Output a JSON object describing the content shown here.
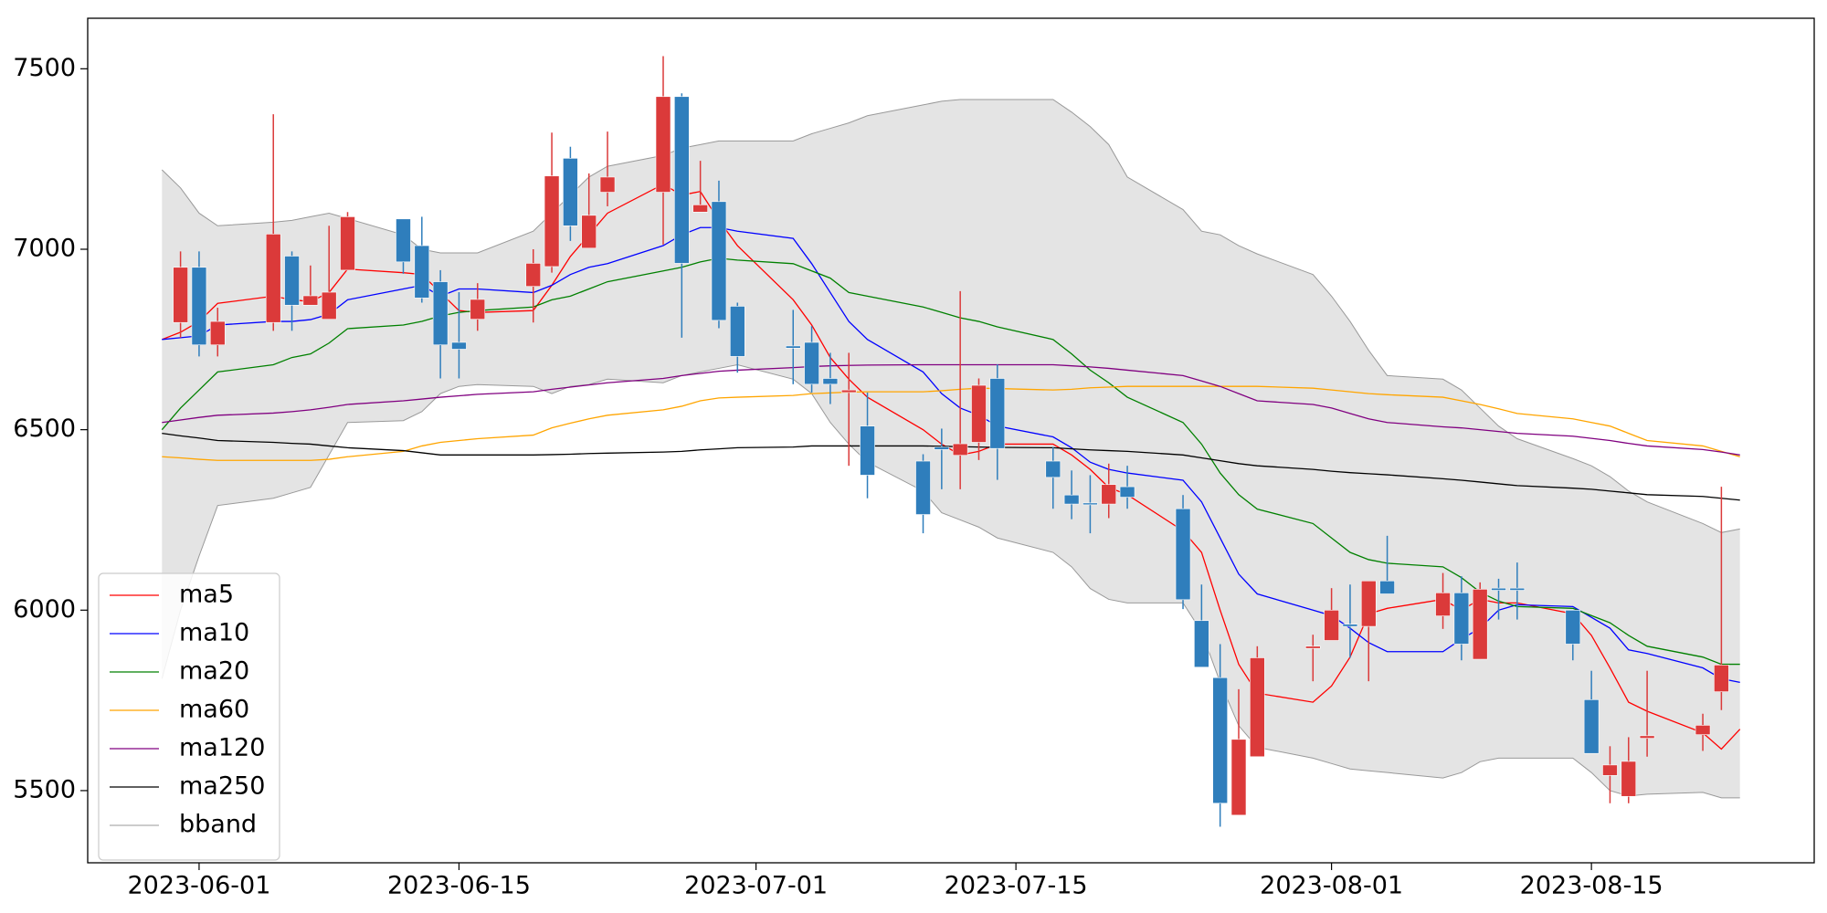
{
  "chart_data": {
    "type": "candlestick",
    "legend": "lower left",
    "ylim": [
      5300,
      7640
    ],
    "yticks": [
      5500,
      6000,
      6500,
      7000,
      7500
    ],
    "xlim": [
      "2023-05-26",
      "2023-08-27"
    ],
    "xticks": [
      "2023-06-01",
      "2023-06-15",
      "2023-07-01",
      "2023-07-15",
      "2023-08-01",
      "2023-08-15"
    ],
    "x": [
      "2023-05-30",
      "2023-05-31",
      "2023-06-01",
      "2023-06-02",
      "2023-06-05",
      "2023-06-06",
      "2023-06-07",
      "2023-06-08",
      "2023-06-09",
      "2023-06-12",
      "2023-06-13",
      "2023-06-14",
      "2023-06-15",
      "2023-06-16",
      "2023-06-19",
      "2023-06-20",
      "2023-06-21",
      "2023-06-22",
      "2023-06-23",
      "2023-06-26",
      "2023-06-27",
      "2023-06-28",
      "2023-06-29",
      "2023-06-30",
      "2023-07-03",
      "2023-07-04",
      "2023-07-05",
      "2023-07-06",
      "2023-07-07",
      "2023-07-10",
      "2023-07-11",
      "2023-07-12",
      "2023-07-13",
      "2023-07-14",
      "2023-07-17",
      "2023-07-18",
      "2023-07-19",
      "2023-07-20",
      "2023-07-21",
      "2023-07-24",
      "2023-07-25",
      "2023-07-26",
      "2023-07-27",
      "2023-07-28",
      "2023-07-31",
      "2023-08-01",
      "2023-08-02",
      "2023-08-03",
      "2023-08-04",
      "2023-08-07",
      "2023-08-08",
      "2023-08-09",
      "2023-08-10",
      "2023-08-11",
      "2023-08-14",
      "2023-08-15",
      "2023-08-16",
      "2023-08-17",
      "2023-08-18",
      "2023-08-21",
      "2023-08-22",
      "2023-08-23"
    ],
    "candles": {
      "up_color": "#db3a3a",
      "down_color": "#2f7ebc",
      "open": [
        null,
        6797,
        6950,
        6735,
        6797,
        6981,
        6845,
        6806,
        6942,
        7084,
        7010,
        6910,
        6742,
        6806,
        6897,
        6952,
        7252,
        7003,
        7158,
        7158,
        7423,
        7103,
        7132,
        6842,
        6732,
        6742,
        6642,
        6603,
        6510,
        6413,
        6452,
        6429,
        6465,
        6642,
        6413,
        6319,
        6297,
        6294,
        6342,
        6281,
        5971,
        5813,
        5432,
        5594,
        5894,
        5916,
        5961,
        5955,
        6081,
        5984,
        6048,
        5864,
        6061,
        6061,
        6000,
        5752,
        5542,
        5484,
        5645,
        5655,
        5774,
        null
      ],
      "high": [
        null,
        6994,
        6994,
        6838,
        7374,
        6994,
        6955,
        7065,
        7103,
        7084,
        7090,
        6942,
        6881,
        6906,
        7000,
        7323,
        7284,
        7210,
        7326,
        7535,
        7432,
        7245,
        7190,
        6852,
        6832,
        6787,
        6713,
        6713,
        6603,
        6432,
        6503,
        6884,
        6642,
        6681,
        6452,
        6387,
        6374,
        6406,
        6400,
        6319,
        6071,
        5906,
        5781,
        5900,
        5932,
        6061,
        6071,
        6081,
        6206,
        6103,
        6094,
        6077,
        6087,
        6132,
        6000,
        5832,
        5623,
        5648,
        5832,
        5713,
        6342,
        null
      ],
      "low": [
        null,
        6755,
        6703,
        6703,
        6774,
        6774,
        6845,
        6806,
        6942,
        6932,
        6852,
        6642,
        6642,
        6774,
        6797,
        6935,
        7023,
        7003,
        7119,
        7013,
        6755,
        7103,
        6781,
        6658,
        6626,
        6603,
        6571,
        6400,
        6310,
        6213,
        6335,
        6335,
        6416,
        6361,
        6281,
        6252,
        6213,
        6255,
        6281,
        6003,
        5842,
        5400,
        5432,
        5594,
        5803,
        5916,
        5868,
        5803,
        6045,
        5948,
        5861,
        5864,
        5974,
        5974,
        5861,
        5603,
        5465,
        5465,
        5594,
        5610,
        5723,
        null
      ],
      "close": [
        null,
        6950,
        6735,
        6800,
        7042,
        6845,
        6871,
        6881,
        7090,
        6965,
        6865,
        6735,
        6723,
        6861,
        6961,
        7203,
        7065,
        7094,
        7200,
        7423,
        6961,
        7123,
        6803,
        6703,
        6726,
        6626,
        6626,
        6610,
        6374,
        6265,
        6445,
        6461,
        6623,
        6448,
        6368,
        6294,
        6292,
        6348,
        6313,
        6029,
        5842,
        5465,
        5642,
        5868,
        5900,
        6000,
        5955,
        6081,
        6045,
        6048,
        5906,
        6058,
        6055,
        6055,
        5906,
        5603,
        5571,
        5581,
        5652,
        5681,
        5848,
        null
      ]
    },
    "series": [
      {
        "name": "ma5",
        "color": "#ff0000",
        "values": [
          6750,
          6770,
          6800,
          6850,
          6870,
          6860,
          6855,
          6880,
          6945,
          6935,
          6930,
          6880,
          6830,
          6825,
          6830,
          6900,
          6980,
          7040,
          7100,
          7180,
          7150,
          7160,
          7080,
          7010,
          6860,
          6790,
          6700,
          6640,
          6590,
          6500,
          6460,
          6430,
          6440,
          6460,
          6460,
          6430,
          6390,
          6340,
          6320,
          6220,
          6160,
          6000,
          5850,
          5770,
          5745,
          5790,
          5870,
          5990,
          6005,
          6030,
          6000,
          6030,
          6020,
          6020,
          5990,
          5930,
          5840,
          5745,
          5720,
          5660,
          5615,
          5670
        ]
      },
      {
        "name": "ma10",
        "color": "#0000ff",
        "values": [
          6750,
          6755,
          6760,
          6790,
          6800,
          6800,
          6805,
          6820,
          6860,
          6890,
          6900,
          6870,
          6890,
          6890,
          6880,
          6900,
          6930,
          6950,
          6960,
          7010,
          7040,
          7060,
          7060,
          7050,
          7030,
          6960,
          6880,
          6800,
          6750,
          6660,
          6600,
          6560,
          6540,
          6510,
          6480,
          6450,
          6410,
          6390,
          6380,
          6360,
          6300,
          6200,
          6100,
          6045,
          6000,
          5985,
          5950,
          5910,
          5885,
          5885,
          5920,
          5950,
          6000,
          6015,
          6010,
          5980,
          5950,
          5890,
          5880,
          5840,
          5810,
          5800
        ]
      },
      {
        "name": "ma20",
        "color": "#008000",
        "values": [
          6500,
          6560,
          6610,
          6660,
          6680,
          6700,
          6710,
          6740,
          6780,
          6790,
          6800,
          6815,
          6825,
          6830,
          6840,
          6860,
          6870,
          6890,
          6910,
          6940,
          6950,
          6965,
          6975,
          6970,
          6960,
          6940,
          6920,
          6880,
          6870,
          6840,
          6825,
          6810,
          6800,
          6785,
          6750,
          6710,
          6665,
          6630,
          6590,
          6520,
          6460,
          6380,
          6320,
          6280,
          6240,
          6200,
          6160,
          6140,
          6130,
          6120,
          6090,
          6050,
          6025,
          6010,
          6005,
          5985,
          5965,
          5930,
          5900,
          5870,
          5850,
          5850
        ]
      },
      {
        "name": "ma60",
        "color": "#ffa500",
        "values": [
          6425,
          6422,
          6418,
          6415,
          6415,
          6415,
          6415,
          6418,
          6425,
          6440,
          6455,
          6465,
          6470,
          6475,
          6485,
          6505,
          6518,
          6530,
          6540,
          6555,
          6565,
          6580,
          6588,
          6590,
          6595,
          6600,
          6602,
          6604,
          6605,
          6605,
          6608,
          6612,
          6615,
          6614,
          6610,
          6612,
          6616,
          6618,
          6620,
          6620,
          6620,
          6620,
          6620,
          6620,
          6615,
          6610,
          6605,
          6600,
          6597,
          6590,
          6580,
          6570,
          6558,
          6545,
          6530,
          6520,
          6510,
          6490,
          6470,
          6455,
          6440,
          6425
        ]
      },
      {
        "name": "ma120",
        "color": "#800080",
        "values": [
          6520,
          6527,
          6534,
          6540,
          6546,
          6550,
          6555,
          6562,
          6570,
          6580,
          6585,
          6590,
          6594,
          6598,
          6605,
          6612,
          6618,
          6624,
          6630,
          6642,
          6650,
          6656,
          6662,
          6665,
          6672,
          6675,
          6677,
          6678,
          6679,
          6680,
          6680,
          6680,
          6680,
          6680,
          6680,
          6677,
          6674,
          6670,
          6665,
          6650,
          6635,
          6620,
          6600,
          6580,
          6570,
          6560,
          6545,
          6530,
          6520,
          6508,
          6505,
          6500,
          6495,
          6490,
          6482,
          6476,
          6470,
          6462,
          6455,
          6445,
          6438,
          6430
        ]
      },
      {
        "name": "ma250",
        "color": "#000000",
        "values": [
          6490,
          6483,
          6477,
          6470,
          6465,
          6462,
          6460,
          6455,
          6450,
          6442,
          6436,
          6430,
          6430,
          6430,
          6430,
          6431,
          6432,
          6434,
          6435,
          6438,
          6440,
          6444,
          6447,
          6450,
          6452,
          6455,
          6455,
          6455,
          6455,
          6455,
          6454,
          6453,
          6452,
          6451,
          6450,
          6447,
          6444,
          6442,
          6440,
          6430,
          6422,
          6414,
          6406,
          6400,
          6390,
          6385,
          6381,
          6378,
          6375,
          6364,
          6360,
          6355,
          6350,
          6345,
          6338,
          6335,
          6330,
          6325,
          6320,
          6315,
          6310,
          6305
        ]
      }
    ],
    "band": {
      "name": "bband",
      "color": "#999999",
      "fill": "#e4e4e4",
      "upper": [
        7220,
        7170,
        7100,
        7065,
        7075,
        7080,
        7090,
        7100,
        7085,
        7040,
        7000,
        6990,
        6990,
        6990,
        7050,
        7100,
        7150,
        7200,
        7230,
        7260,
        7280,
        7290,
        7300,
        7300,
        7300,
        7320,
        7335,
        7350,
        7370,
        7400,
        7410,
        7415,
        7415,
        7415,
        7415,
        7380,
        7340,
        7290,
        7200,
        7110,
        7050,
        7040,
        7010,
        6987,
        6930,
        6870,
        6800,
        6720,
        6650,
        6640,
        6610,
        6560,
        6510,
        6475,
        6420,
        6400,
        6370,
        6330,
        6300,
        6240,
        6215,
        6225
      ],
      "lower": [
        5810,
        6000,
        6150,
        6290,
        6310,
        6325,
        6340,
        6430,
        6520,
        6525,
        6550,
        6600,
        6620,
        6625,
        6620,
        6600,
        6620,
        6625,
        6640,
        6630,
        6650,
        6660,
        6670,
        6680,
        6640,
        6600,
        6520,
        6460,
        6410,
        6330,
        6270,
        6250,
        6230,
        6200,
        6160,
        6120,
        6060,
        6030,
        6020,
        6020,
        5940,
        5800,
        5680,
        5620,
        5590,
        5575,
        5560,
        5555,
        5550,
        5535,
        5550,
        5580,
        5590,
        5590,
        5590,
        5550,
        5500,
        5485,
        5490,
        5495,
        5480,
        5480
      ]
    }
  }
}
